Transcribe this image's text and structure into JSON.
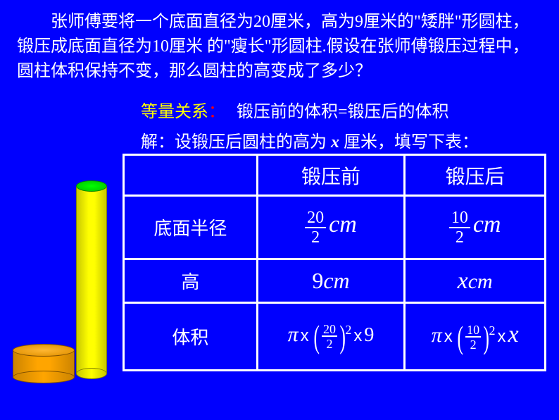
{
  "problem": {
    "text": "　　张师傅要将一个底面直径为20厘米，高为9厘米的\"矮胖\"形圆柱，锻压成底面直径为10厘米 的\"瘦长\"形圆柱.假设在张师傅锻压过程中，圆柱体积保持不变，那么圆柱的高变成了多少？"
  },
  "labels": {
    "equal_relation": "等量关系",
    "colon": "：",
    "relation_text": "锻压前的体积=锻压后的体积",
    "solve_prefix": "解：设锻压后圆柱的高为 ",
    "x_var": "x",
    "solve_suffix": " 厘米，填写下表："
  },
  "table": {
    "background": "#0000fe",
    "border_color": "#ffffff",
    "text_color": "#ffffff",
    "headers": {
      "before": "锻压前",
      "after": "锻压后"
    },
    "rows": {
      "radius": {
        "label": "底面半径",
        "before": {
          "num": "20",
          "den": "2",
          "unit": "cm"
        },
        "after": {
          "num": "10",
          "den": "2",
          "unit": "cm"
        }
      },
      "height": {
        "label": "高",
        "before": {
          "val": "9",
          "unit": "cm"
        },
        "after": {
          "val": "x",
          "unit": "cm"
        }
      },
      "volume": {
        "label": "体积",
        "before": {
          "pi": "π",
          "frac_num": "20",
          "frac_den": "2",
          "exp": "2",
          "times": "x",
          "tail": "9"
        },
        "after": {
          "pi": "π",
          "frac_num": "10",
          "frac_den": "2",
          "exp": "2",
          "times": "x",
          "tail": "x"
        }
      }
    }
  },
  "colors": {
    "bg": "#0000fe",
    "text_white": "#ffffff",
    "accent_yellow": "#ffff00",
    "accent_red": "#ff0000",
    "cyl_tall_body": "#ffff00",
    "cyl_tall_top": "#00ff00",
    "cyl_short": "#ffa500"
  }
}
